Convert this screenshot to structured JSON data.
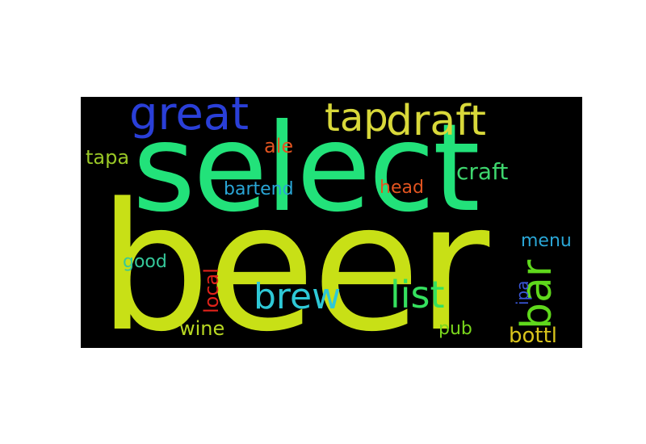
{
  "wordcloud": {
    "background": "#000000",
    "words": [
      {
        "id": "beer",
        "text": "beer",
        "color": "#c8e016"
      },
      {
        "id": "select",
        "text": "select",
        "color": "#22e27a"
      },
      {
        "id": "great",
        "text": "great",
        "color": "#2a3fd8"
      },
      {
        "id": "tap",
        "text": "tap",
        "color": "#d8d83a"
      },
      {
        "id": "draft",
        "text": "draft",
        "color": "#d8d83a"
      },
      {
        "id": "bar",
        "text": "bar",
        "color": "#5fd81c"
      },
      {
        "id": "list",
        "text": "list",
        "color": "#35e05e"
      },
      {
        "id": "brew",
        "text": "brew",
        "color": "#2ec8d6"
      },
      {
        "id": "craft",
        "text": "craft",
        "color": "#3ed66e"
      },
      {
        "id": "tapa",
        "text": "tapa",
        "color": "#9ac826"
      },
      {
        "id": "ale",
        "text": "ale",
        "color": "#e25420"
      },
      {
        "id": "bartend",
        "text": "bartend",
        "color": "#2aa6d6"
      },
      {
        "id": "head",
        "text": "head",
        "color": "#e25420"
      },
      {
        "id": "menu",
        "text": "menu",
        "color": "#2aa6d6"
      },
      {
        "id": "good",
        "text": "good",
        "color": "#35c89a"
      },
      {
        "id": "local",
        "text": "local",
        "color": "#e0221a"
      },
      {
        "id": "ipa",
        "text": "ipa",
        "color": "#3a56d8"
      },
      {
        "id": "wine",
        "text": "wine",
        "color": "#b8d822"
      },
      {
        "id": "pub",
        "text": "pub",
        "color": "#7ad61c"
      },
      {
        "id": "bottl",
        "text": "bottl",
        "color": "#d8c41c"
      }
    ]
  }
}
